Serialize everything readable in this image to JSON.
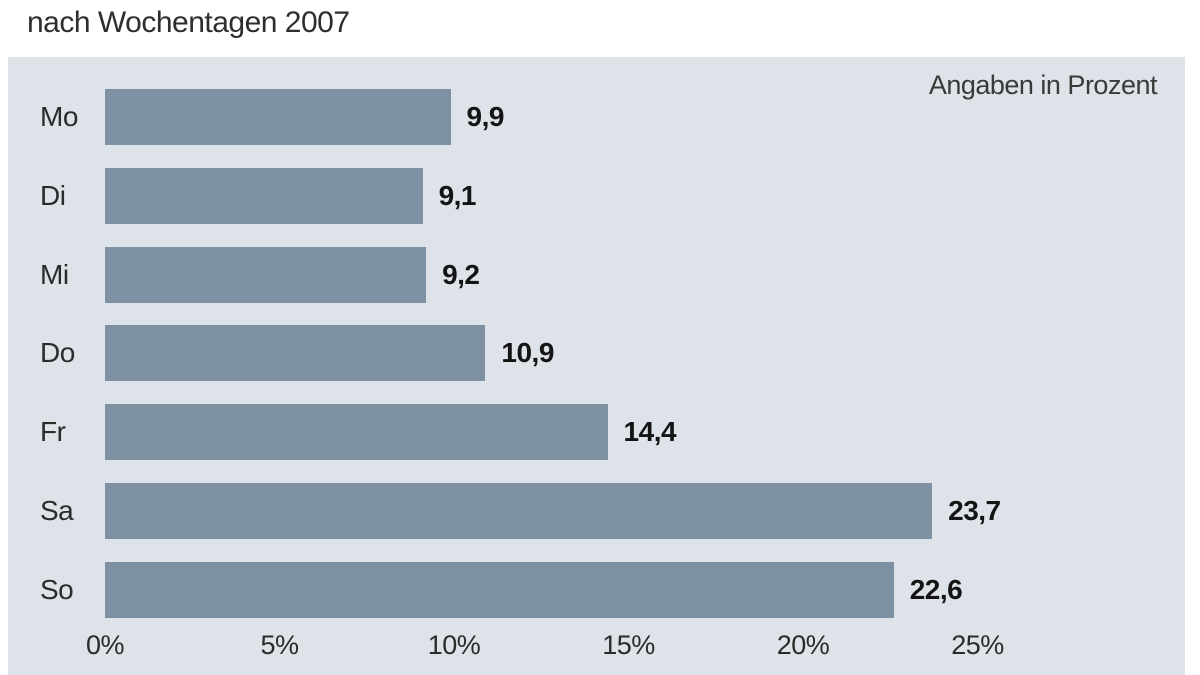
{
  "title": "nach Wochentagen 2007",
  "note": "Angaben in Prozent",
  "colors": {
    "page_bg": "#ffffff",
    "panel_bg": "#dde3e9",
    "bar": "#7e91a3",
    "title_text": "#2e2e2e",
    "value_text": "#141414",
    "label_text": "#2b2b2b"
  },
  "chart_data": {
    "type": "bar",
    "orientation": "horizontal",
    "title": "nach Wochentagen 2007",
    "subtitle_note": "Angaben in Prozent",
    "categories": [
      "Mo",
      "Di",
      "Mi",
      "Do",
      "Fr",
      "Sa",
      "So"
    ],
    "values": [
      9.9,
      9.1,
      9.2,
      10.9,
      14.4,
      23.7,
      22.6
    ],
    "value_labels": [
      "9,9",
      "9,1",
      "9,2",
      "10,9",
      "14,4",
      "23,7",
      "22,6"
    ],
    "unit": "percent",
    "xlim": [
      0,
      25
    ],
    "tick_values": [
      0,
      5,
      10,
      15,
      20,
      25
    ],
    "tick_labels": [
      "0%",
      "5%",
      "10%",
      "15%",
      "20%",
      "25%"
    ],
    "grid": false,
    "legend": "none"
  }
}
